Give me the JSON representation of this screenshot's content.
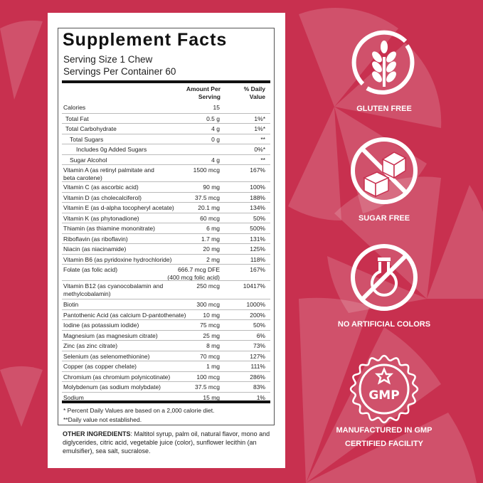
{
  "colors": {
    "background": "#c8304f",
    "panel": "#ffffff",
    "text": "#222222"
  },
  "label": {
    "title": "Supplement Facts",
    "serving_size": "Serving Size 1 Chew",
    "servings_per_container": "Servings Per Container 60",
    "col_amount": "Amount Per Serving",
    "col_dv": "% Daily Value",
    "rows": [
      {
        "name": "Calories",
        "amount": "15",
        "dv": ""
      },
      {
        "name": "Total Fat",
        "amount": "0.5 g",
        "dv": "1%*"
      },
      {
        "name": "Total Carbohydrate",
        "amount": "4 g",
        "dv": "1%*"
      },
      {
        "name": "Total Sugars",
        "amount": "0 g",
        "dv": "**"
      },
      {
        "name": "Includes 0g Added Sugars",
        "amount": "",
        "dv": "0%*"
      },
      {
        "name": "Sugar Alcohol",
        "amount": "4 g",
        "dv": "**"
      },
      {
        "name": "Vitamin A (as retinyl palmitate and beta carotene)",
        "amount": "1500 mcg",
        "dv": "167%"
      },
      {
        "name": "Vitamin C (as ascorbic acid)",
        "amount": "90 mg",
        "dv": "100%"
      },
      {
        "name": "Vitamin D (as cholecalciferol)",
        "amount": "37.5 mcg",
        "dv": "188%"
      },
      {
        "name": "Vitamin E (as d-alpha tocopheryl acetate)",
        "amount": "20.1 mg",
        "dv": "134%"
      },
      {
        "name": "Vitamin K (as phytonadione)",
        "amount": "60 mcg",
        "dv": "50%"
      },
      {
        "name": "Thiamin (as thiamine mononitrate)",
        "amount": "6 mg",
        "dv": "500%"
      },
      {
        "name": "Riboflavin (as riboflavin)",
        "amount": "1.7 mg",
        "dv": "131%"
      },
      {
        "name": "Niacin (as niacinamide)",
        "amount": "20 mg",
        "dv": "125%"
      },
      {
        "name": "Vitamin B6 (as pyridoxine hydrochloride)",
        "amount": "2 mg",
        "dv": "118%"
      },
      {
        "name": "Folate (as folic acid)",
        "amount": "666.7 mcg DFE\n(400 mcg folic acid)",
        "dv": "167%"
      },
      {
        "name": "Vitamin B12 (as cyanocobalamin and methylcobalamin)",
        "amount": "250 mcg",
        "dv": "10417%"
      },
      {
        "name": "Biotin",
        "amount": "300 mcg",
        "dv": "1000%"
      },
      {
        "name": "Pantothenic Acid (as calcium D-pantothenate)",
        "amount": "10 mg",
        "dv": "200%"
      },
      {
        "name": "Iodine (as potassium iodide)",
        "amount": "75 mcg",
        "dv": "50%"
      },
      {
        "name": "Magnesium (as magnesium citrate)",
        "amount": "25 mg",
        "dv": "6%"
      },
      {
        "name": "Zinc (as zinc citrate)",
        "amount": "8 mg",
        "dv": "73%"
      },
      {
        "name": "Selenium (as selenomethionine)",
        "amount": "70 mcg",
        "dv": "127%"
      },
      {
        "name": "Copper (as copper chelate)",
        "amount": "1 mg",
        "dv": "111%"
      },
      {
        "name": "Chromium (as chromium polynicotinate)",
        "amount": "100 mcg",
        "dv": "286%"
      },
      {
        "name": "Molybdenum (as sodium molybdate)",
        "amount": "37.5 mcg",
        "dv": "83%"
      },
      {
        "name": "Sodium",
        "amount": "15 mg",
        "dv": "1%"
      }
    ],
    "footnote_1": "* Percent Daily Values are based on a 2,000 calorie diet.",
    "footnote_2": "**Daily value not established."
  },
  "ingredients": {
    "heading": "OTHER INGREDIENTS",
    "text": ": Maltitol syrup, palm oil, natural flavor, mono and diglycerides, citric acid, vegetable juice (color), sunflower lecithin (an emulsifier), sea salt, sucralose."
  },
  "badges": [
    {
      "icon": "wheat-crossed-icon",
      "label": "GLUTEN FREE"
    },
    {
      "icon": "sugar-cube-crossed-icon",
      "label": "SUGAR FREE"
    },
    {
      "icon": "flask-crossed-icon",
      "label": "NO ARTIFICIAL COLORS"
    },
    {
      "icon": "gmp-seal-icon",
      "label": "MANUFACTURED IN GMP CERTIFIED FACILITY",
      "emblem_text": "GMP"
    }
  ]
}
